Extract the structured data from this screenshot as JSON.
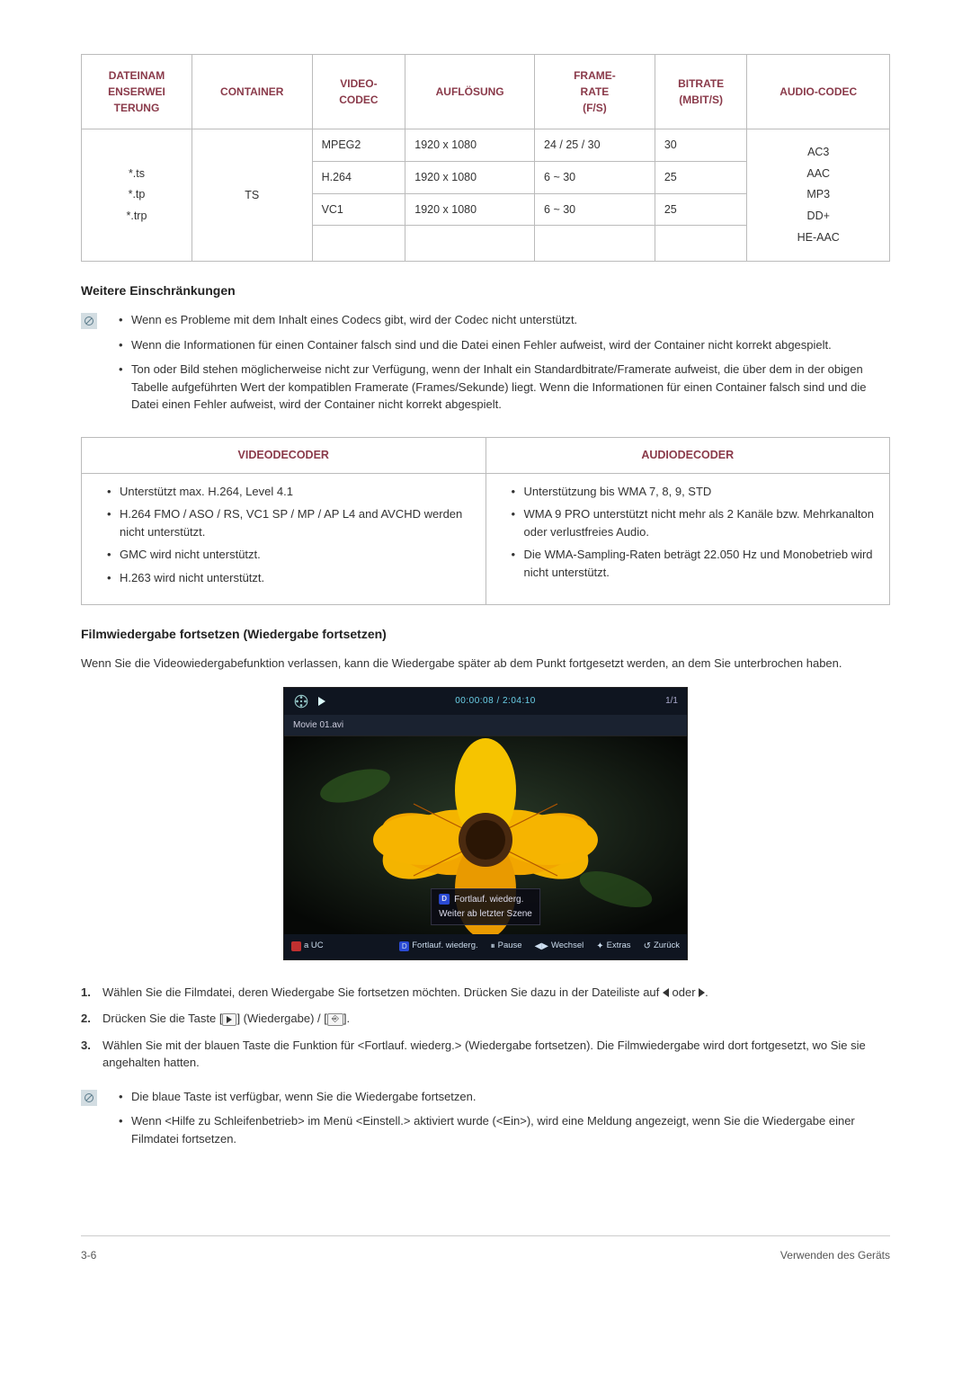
{
  "codec_table": {
    "headers": [
      "DATEINAM\nENSERWEI\nTERUNG",
      "CONTAINER",
      "VIDEO-\nCODEC",
      "AUFLÖSUNG",
      "FRAME-\nRATE\n(F/S)",
      "BITRATE\n(MBIT/S)",
      "AUDIO-CODEC"
    ],
    "extensions": "*.ts\n*.tp\n*.trp",
    "container": "TS",
    "rows": [
      {
        "vcodec": "MPEG2",
        "res": "1920 x 1080",
        "frate": "24 / 25 / 30",
        "brate": "30"
      },
      {
        "vcodec": "H.264",
        "res": "1920 x 1080",
        "frate": "6 ~ 30",
        "brate": "25"
      },
      {
        "vcodec": "VC1",
        "res": "1920 x 1080",
        "frate": "6 ~ 30",
        "brate": "25"
      }
    ],
    "audio_codecs": "AC3\nAAC\nMP3\nDD+\nHE-AAC",
    "header_color": "#8a3a4a",
    "border_color": "#bbbbbb"
  },
  "restrictions": {
    "heading": "Weitere Einschränkungen",
    "items": [
      "Wenn es Probleme mit dem Inhalt eines Codecs gibt, wird der Codec nicht unterstützt.",
      "Wenn die Informationen für einen Container falsch sind und die Datei einen Fehler aufweist, wird der Container nicht korrekt abgespielt.",
      "Ton oder Bild stehen möglicherweise nicht zur Verfügung, wenn der Inhalt ein Standardbitrate/Framerate aufweist, die über dem in der obigen Tabelle aufgeführten Wert der kompatiblen Framerate (Frames/Sekunde) liegt. Wenn die Informationen für einen Container falsch sind und die Datei einen Fehler aufweist, wird der Container nicht korrekt abgespielt."
    ]
  },
  "decoder_table": {
    "video_header": "VIDEODECODER",
    "audio_header": "AUDIODECODER",
    "video_items": [
      "Unterstützt max. H.264, Level 4.1",
      "H.264 FMO / ASO / RS, VC1 SP / MP / AP L4 and AVCHD werden nicht unterstützt.",
      "GMC wird nicht unterstützt.",
      "H.263 wird nicht unterstützt."
    ],
    "audio_items": [
      "Unterstützung bis WMA 7, 8, 9, STD",
      "WMA 9 PRO unterstützt nicht mehr als 2 Kanäle bzw. Mehrkanalton oder verlustfreies Audio.",
      "Die WMA-Sampling-Raten beträgt 22.050 Hz und Monobetrieb wird nicht unterstützt."
    ]
  },
  "resume": {
    "heading": "Filmwiedergabe fortsetzen (Wiedergabe fortsetzen)",
    "intro": "Wenn Sie die Videowiedergabefunktion verlassen, kann die Wiedergabe später ab dem Punkt fortgesetzt werden, an dem Sie unterbrochen haben."
  },
  "player": {
    "time": "00:00:08 / 2:04:10",
    "counter": "1/1",
    "filename": "Movie 01.avi",
    "popup_title": "Fortlauf. wiederg.",
    "popup_sub": "Weiter ab letzter Szene",
    "bottom_left": "a UC",
    "b_resume": "Fortlauf. wiederg.",
    "b_pause": "Pause",
    "b_switch": "Wechsel",
    "b_extras": "Extras",
    "b_back": "Zurück",
    "bg": "#0a0a0a",
    "accent": "#6bd0e8"
  },
  "steps": {
    "s1a": "Wählen Sie die Filmdatei, deren Wiedergabe Sie fortsetzen möchten. Drücken Sie dazu in der Dateiliste auf ",
    "s1b": " oder ",
    "s1c": ".",
    "s2a": "Drücken Sie die Taste [",
    "s2b": "] (Wiedergabe) / [",
    "s2c": "].",
    "s3": "Wählen Sie mit der blauen Taste die Funktion für <Fortlauf. wiederg.> (Wiedergabe fortsetzen). Die Filmwiedergabe wird dort fortgesetzt, wo Sie sie angehalten hatten."
  },
  "notes2": {
    "items": [
      "Die blaue Taste ist verfügbar, wenn Sie die Wiedergabe fortsetzen.",
      "Wenn <Hilfe zu Schleifenbetrieb> im Menü <Einstell.> aktiviert wurde (<Ein>), wird eine Meldung angezeigt, wenn Sie die Wiedergabe einer Filmdatei fortsetzen."
    ]
  },
  "footer": {
    "left": "3-6",
    "right": "Verwenden des Geräts"
  }
}
